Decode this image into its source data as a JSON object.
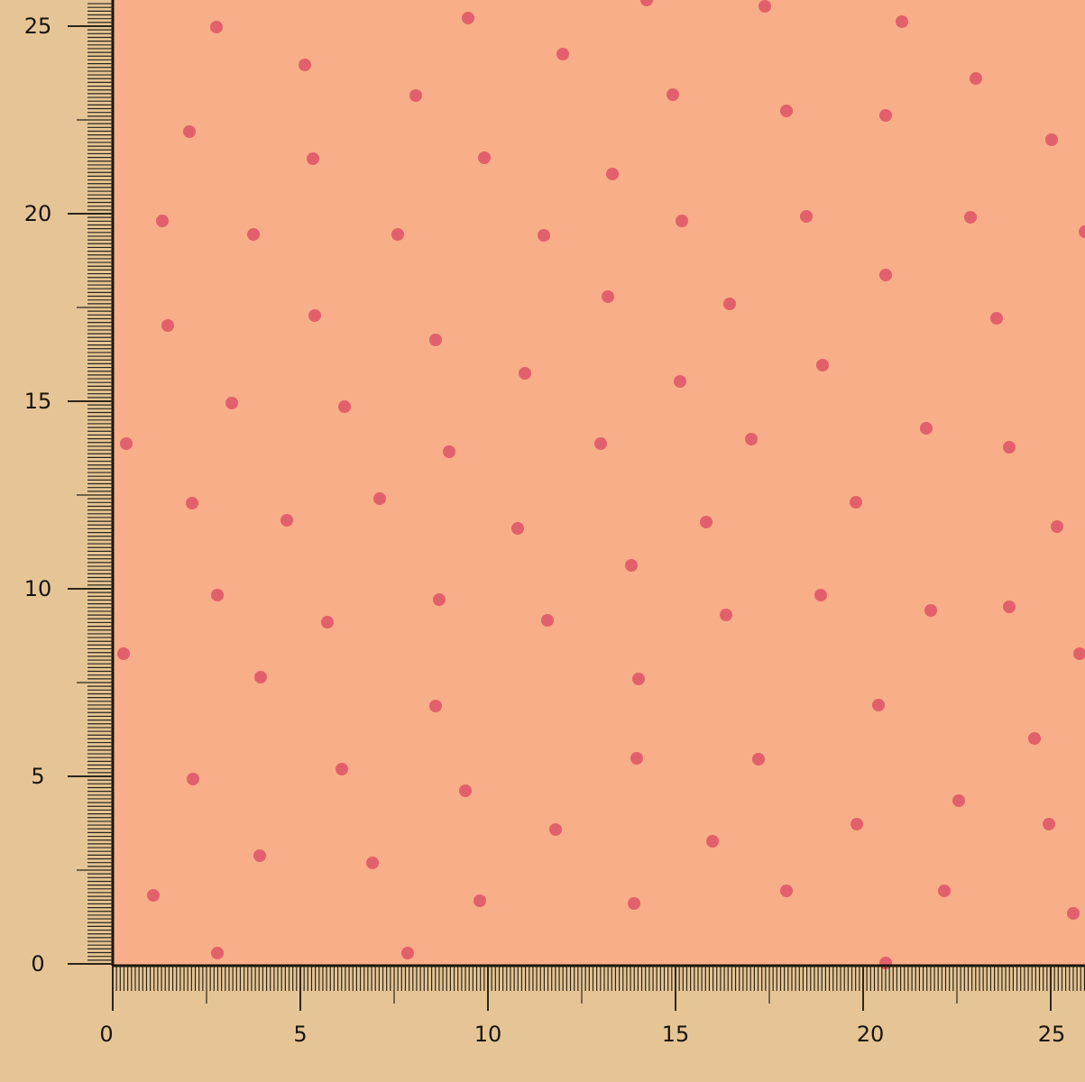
{
  "ruler": {
    "vertical_labels": [
      "0",
      "5",
      "10",
      "15",
      "20",
      "25"
    ],
    "horizontal_labels": [
      "0",
      "5",
      "10",
      "15",
      "20",
      "25"
    ],
    "major_every": 5,
    "minor_step": 0.1
  },
  "colors": {
    "fabric": "#f8ae88",
    "dots": "#e2606b",
    "ruler_background": "#e5c596",
    "ruler_ticks": "#2e2618"
  },
  "pattern": "polka-dot"
}
